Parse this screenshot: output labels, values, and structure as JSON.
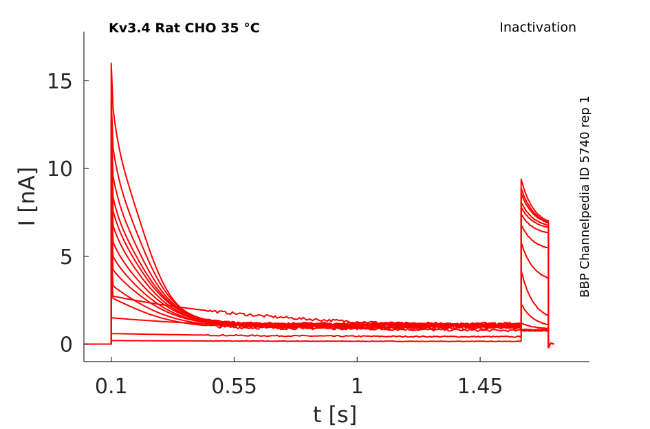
{
  "chart_data": {
    "type": "line",
    "title": "Kv3.4  Rat  CHO  35 °C",
    "corner_label": "Inactivation",
    "side_label": "BBP Channelpedia ID 5740 rep 1",
    "xlabel": "t [s]",
    "ylabel": "I [nA]",
    "xlim": [
      0.0,
      1.85
    ],
    "ylim": [
      -1.0,
      17.8
    ],
    "xticks": [
      0.1,
      0.55,
      1,
      1.45
    ],
    "xtick_labels": [
      "0.1",
      "0.55",
      "1",
      "1.45"
    ],
    "yticks": [
      0,
      5,
      10,
      15
    ],
    "ytick_labels": [
      "0",
      "5",
      "10",
      "15"
    ],
    "grid": false,
    "color": "#ff0000",
    "protocol": {
      "baseline_start": 0.0,
      "step_start": 0.1,
      "test_start": 1.6,
      "test_end": 1.7,
      "trace_end": 1.72
    },
    "series": [
      {
        "peak": 0.2,
        "end": 0.15,
        "test_peak": 0.75,
        "test_end": 0.75
      },
      {
        "peak": 0.6,
        "end": 0.4,
        "test_peak": 0.8,
        "test_end": 0.8
      },
      {
        "peak": 1.5,
        "end": 0.7,
        "test_peak": 0.8,
        "test_end": 0.8
      },
      {
        "peak": 2.75,
        "end": 0.85,
        "test_peak": 0.85,
        "test_end": 0.8
      },
      {
        "peak": 4.1,
        "end": 0.9,
        "test_peak": 1.2,
        "test_end": 0.85
      },
      {
        "peak": 5.2,
        "end": 0.95,
        "test_peak": 2.3,
        "test_end": 0.95
      },
      {
        "peak": 6.5,
        "end": 1.0,
        "test_peak": 4.2,
        "test_end": 1.3
      },
      {
        "peak": 7.5,
        "end": 1.0,
        "test_peak": 5.8,
        "test_end": 3.5
      },
      {
        "peak": 8.5,
        "end": 1.05,
        "test_peak": 6.8,
        "test_end": 5.3
      },
      {
        "peak": 9.6,
        "end": 1.05,
        "test_peak": 7.4,
        "test_end": 6.2
      },
      {
        "peak": 10.5,
        "end": 1.1,
        "test_peak": 7.8,
        "test_end": 6.5
      },
      {
        "peak": 11.3,
        "end": 1.1,
        "test_peak": 8.1,
        "test_end": 6.6
      },
      {
        "peak": 12.5,
        "end": 1.1,
        "test_peak": 8.6,
        "test_end": 6.7
      },
      {
        "peak": 14.0,
        "end": 1.15,
        "test_peak": 8.9,
        "test_end": 6.7
      },
      {
        "peak": 16.0,
        "end": 1.15,
        "test_peak": 9.4,
        "test_end": 6.7
      }
    ]
  }
}
